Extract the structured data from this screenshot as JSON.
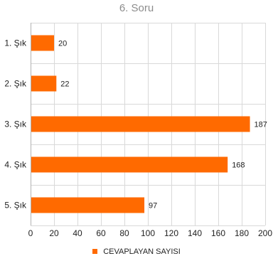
{
  "chart_data": {
    "type": "bar",
    "orientation": "horizontal",
    "title": "6. Soru",
    "categories": [
      "1. Şık",
      "2. Şık",
      "3. Şık",
      "4. Şık",
      "5. Şık"
    ],
    "series": [
      {
        "name": "CEVAPLAYAN SAYISI",
        "values": [
          20,
          22,
          187,
          168,
          97
        ],
        "color": "#ff6a00"
      }
    ],
    "xlim": [
      0,
      200
    ],
    "x_ticks": [
      0,
      20,
      40,
      60,
      80,
      100,
      120,
      140,
      160,
      180,
      200
    ],
    "grid": true,
    "legend_position": "bottom",
    "data_labels": true
  }
}
